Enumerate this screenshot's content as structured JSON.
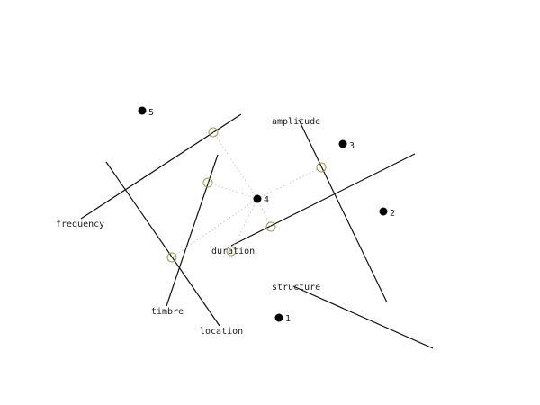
{
  "axes": [
    {
      "name": "frequency"
    },
    {
      "name": "amplitude"
    },
    {
      "name": "duration"
    },
    {
      "name": "timbre"
    },
    {
      "name": "location"
    },
    {
      "name": "structure"
    }
  ],
  "points": [
    {
      "label": "1"
    },
    {
      "label": "2"
    },
    {
      "label": "3"
    },
    {
      "label": "4"
    },
    {
      "label": "5"
    }
  ],
  "colors": {
    "axis": "#111111",
    "projection": "#c8c8c8",
    "marker": "#9a9a55",
    "point": "#000000"
  }
}
